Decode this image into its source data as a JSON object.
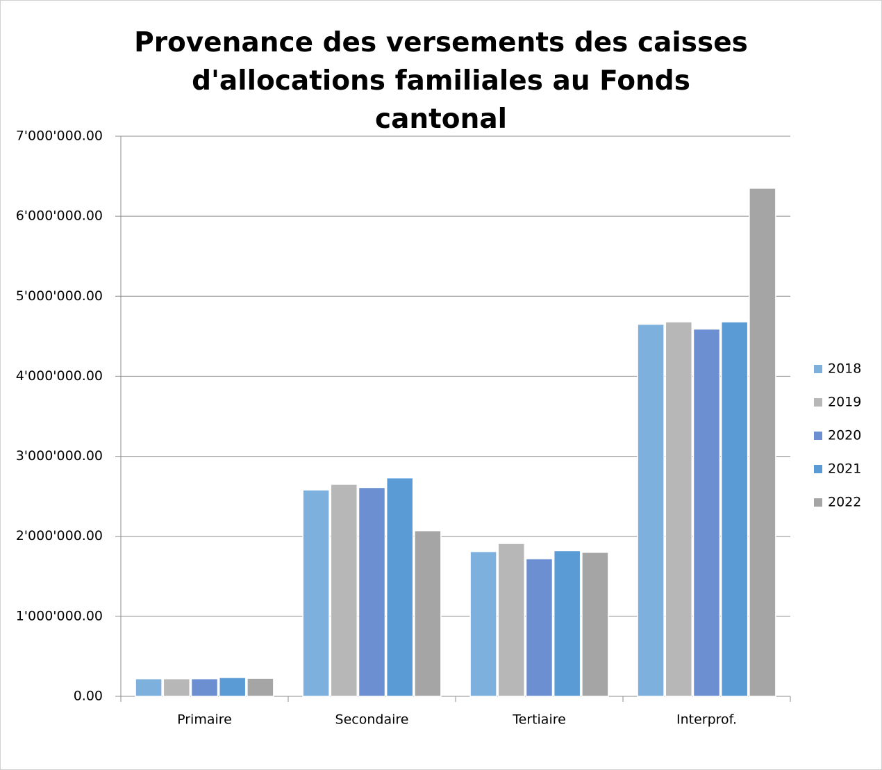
{
  "chart_data": {
    "type": "bar",
    "title": "Provenance des versements des caisses d'allocations familiales au Fonds cantonal",
    "categories": [
      "Primaire",
      "Secondaire",
      "Tertiaire",
      "Interprof."
    ],
    "series": [
      {
        "name": "2018",
        "color": "#7eb0de",
        "values": [
          220000,
          2580000,
          1810000,
          4650000
        ]
      },
      {
        "name": "2019",
        "color": "#b7b7b7",
        "values": [
          220000,
          2650000,
          1910000,
          4680000
        ]
      },
      {
        "name": "2020",
        "color": "#6b8fd0",
        "values": [
          220000,
          2610000,
          1720000,
          4590000
        ]
      },
      {
        "name": "2021",
        "color": "#5b9bd5",
        "values": [
          235000,
          2730000,
          1820000,
          4680000
        ]
      },
      {
        "name": "2022",
        "color": "#a5a5a5",
        "values": [
          225000,
          2070000,
          1800000,
          6350000
        ]
      }
    ],
    "ylim": [
      0,
      7000000
    ],
    "yticks": [
      {
        "value": 0,
        "label": "0.00"
      },
      {
        "value": 1000000,
        "label": "1'000'000.00"
      },
      {
        "value": 2000000,
        "label": "2'000'000.00"
      },
      {
        "value": 3000000,
        "label": "3'000'000.00"
      },
      {
        "value": 4000000,
        "label": "4'000'000.00"
      },
      {
        "value": 5000000,
        "label": "5'000'000.00"
      },
      {
        "value": 6000000,
        "label": "6'000'000.00"
      },
      {
        "value": 7000000,
        "label": "7'000'000.00"
      }
    ],
    "grid": true,
    "legend": "right"
  }
}
